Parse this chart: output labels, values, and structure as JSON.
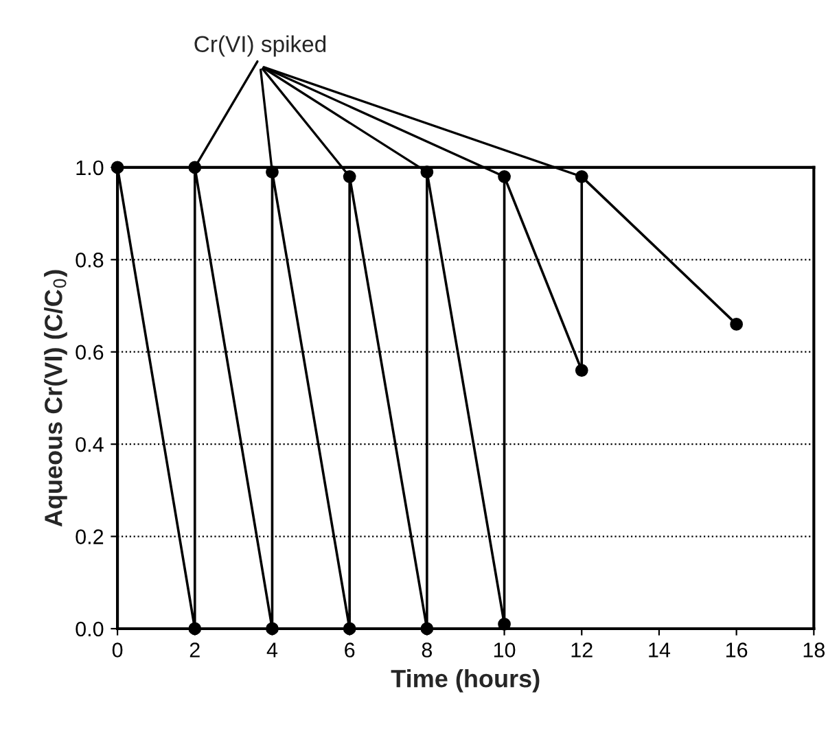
{
  "chart_data": {
    "type": "line",
    "xlabel": "Time (hours)",
    "ylabel": "Aqueous Cr(VI) (C/C$_{0}$)",
    "annotations": [
      {
        "text": "Cr(VI) spiked",
        "x": 2,
        "y": 1.0
      }
    ],
    "series": [
      {
        "color": "#000000",
        "x": [
          0,
          2,
          2,
          4,
          4,
          6,
          6,
          8,
          8,
          10,
          10,
          12,
          12,
          16
        ],
        "values": [
          1.0,
          0.0,
          1.0,
          0.0,
          0.99,
          0.0,
          0.98,
          0.0,
          0.99,
          0.01,
          0.98,
          0.56,
          0.98,
          0.66
        ]
      }
    ],
    "xlim": [
      0,
      18
    ],
    "xticks": [
      0,
      2,
      4,
      6,
      8,
      10,
      12,
      14,
      16,
      18
    ],
    "ylim": [
      0,
      1
    ],
    "yticks": [
      {
        "value": 0,
        "label": "0.0"
      },
      {
        "value": 0.2,
        "label": "0.2"
      },
      {
        "value": 0.4,
        "label": "0.4"
      },
      {
        "value": 0.6,
        "label": "0.6"
      },
      {
        "value": 0.8,
        "label": "0.8"
      },
      {
        "value": 1,
        "label": "1.0"
      }
    ],
    "grid": "y",
    "marker": "circle",
    "line_style": "solid"
  }
}
